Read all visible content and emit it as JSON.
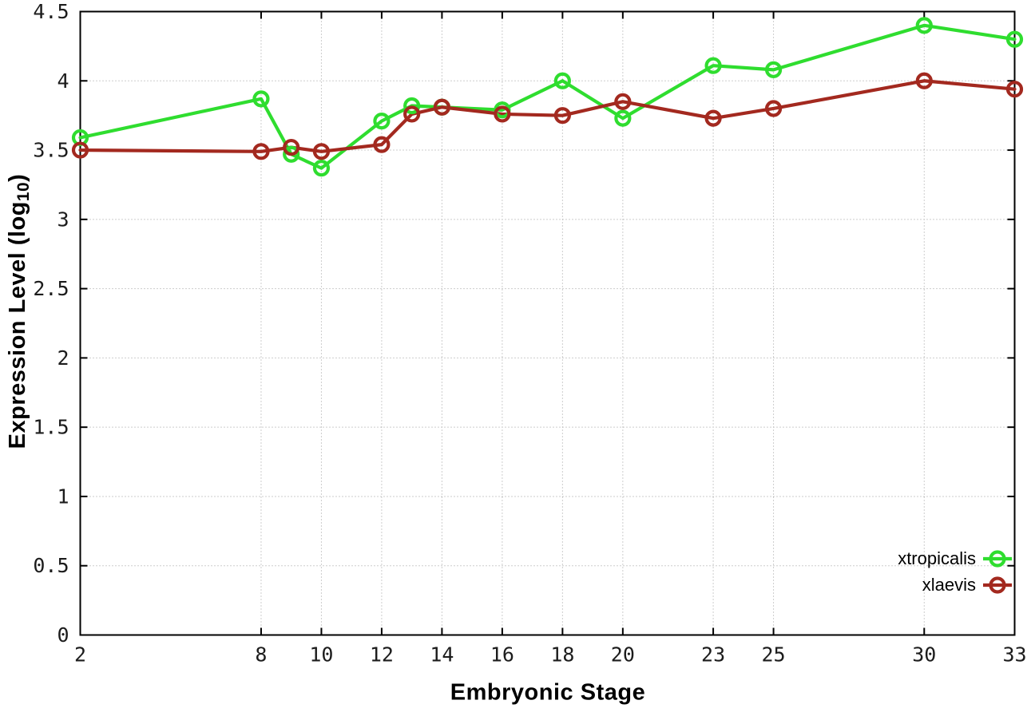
{
  "figure": {
    "background": "#ffffff",
    "border_color": "#000000",
    "grid_color": "#9b9b9b",
    "tick_label_color": "#1c1c1c"
  },
  "labels": {
    "xlabel": "Embryonic Stage",
    "ylabel_main": "Expression Level (log",
    "ylabel_sub": "10",
    "ylabel_close": ")"
  },
  "legend": {
    "position": "bottom-right",
    "items": [
      {
        "label": "xtropicalis",
        "color": "#2fdd2f"
      },
      {
        "label": "xlaevis",
        "color": "#a3291f"
      }
    ]
  },
  "chart_data": {
    "type": "line",
    "title": "",
    "xlabel": "Embryonic Stage",
    "ylabel": "Expression Level (log10)",
    "xlim": [
      2,
      33
    ],
    "ylim": [
      0,
      4.5
    ],
    "xticks": [
      2,
      8,
      10,
      12,
      14,
      16,
      18,
      20,
      23,
      25,
      30,
      33
    ],
    "yticks": [
      0,
      0.5,
      1,
      1.5,
      2,
      2.5,
      3,
      3.5,
      4,
      4.5
    ],
    "grid": true,
    "legend_position": "bottom-right",
    "marker": "open-circle",
    "x": [
      2,
      8,
      9,
      10,
      12,
      13,
      14,
      16,
      18,
      20,
      23,
      25,
      30,
      33
    ],
    "series": [
      {
        "name": "xtropicalis",
        "color": "#2fdd2f",
        "values": [
          3.59,
          3.87,
          3.47,
          3.37,
          3.71,
          3.82,
          3.81,
          3.79,
          4.0,
          3.73,
          4.11,
          4.08,
          4.4,
          4.3
        ]
      },
      {
        "name": "xlaevis",
        "color": "#a3291f",
        "values": [
          3.5,
          3.49,
          3.52,
          3.49,
          3.54,
          3.76,
          3.81,
          3.76,
          3.75,
          3.85,
          3.73,
          3.8,
          4.0,
          3.94
        ]
      }
    ]
  }
}
